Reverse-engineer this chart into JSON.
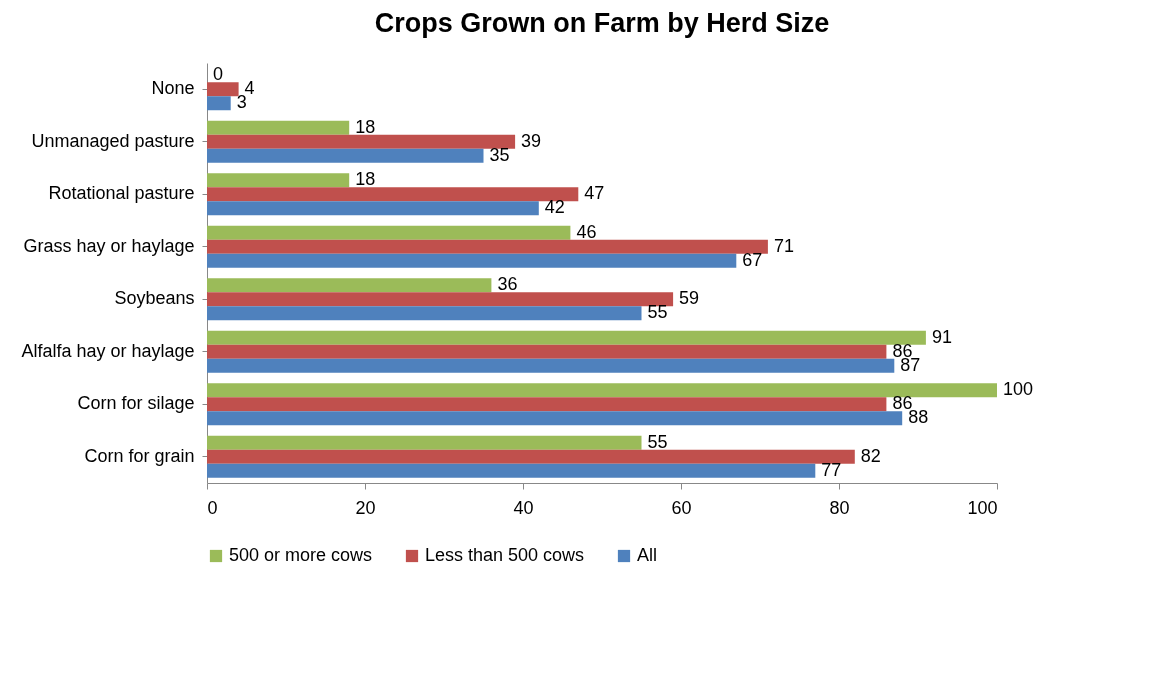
{
  "chart_data": {
    "type": "bar",
    "orientation": "horizontal",
    "title": "Crops Grown on Farm by Herd Size",
    "categories": [
      "None",
      "Unmanaged pasture",
      "Rotational pasture",
      "Grass hay or haylage",
      "Soybeans",
      "Alfalfa hay or haylage",
      "Corn for silage",
      "Corn for grain"
    ],
    "series": [
      {
        "name": "500 or more cows",
        "color": "#9bbb59",
        "values": [
          0,
          18,
          18,
          46,
          36,
          91,
          100,
          55
        ]
      },
      {
        "name": "Less than 500 cows",
        "color": "#c0504d",
        "values": [
          4,
          39,
          47,
          71,
          59,
          86,
          86,
          82
        ]
      },
      {
        "name": "All",
        "color": "#4f81bd",
        "values": [
          3,
          35,
          42,
          67,
          55,
          87,
          88,
          77
        ]
      }
    ],
    "xlim": [
      0,
      100
    ],
    "xticks": [
      0,
      20,
      40,
      60,
      80,
      100
    ],
    "grid": false,
    "data_labels": true,
    "legend": "bottom"
  }
}
